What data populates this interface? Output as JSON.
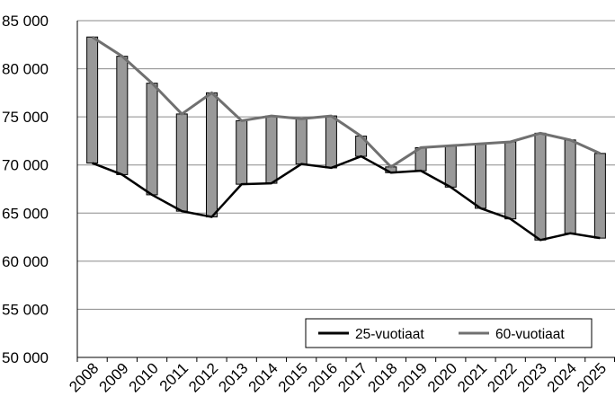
{
  "chart_data": {
    "type": "line",
    "categories": [
      "2008",
      "2009",
      "2010",
      "2011",
      "2012",
      "2013",
      "2014",
      "2015",
      "2016",
      "2017",
      "2018",
      "2019",
      "2020",
      "2021",
      "2022",
      "2023",
      "2024",
      "2025"
    ],
    "series": [
      {
        "name": "25-vuotiaat",
        "color": "#000000",
        "values": [
          70200,
          69000,
          66900,
          65200,
          64600,
          68000,
          68100,
          70100,
          69700,
          70900,
          69200,
          69400,
          67700,
          65500,
          64400,
          62200,
          62900,
          62400
        ]
      },
      {
        "name": "60-vuotiaat",
        "color": "#707070",
        "values": [
          83300,
          81300,
          78500,
          75300,
          77500,
          74600,
          75100,
          74800,
          75100,
          73000,
          69800,
          71800,
          72000,
          72200,
          72400,
          73300,
          72600,
          71200
        ]
      }
    ],
    "bar_fill": "#999999",
    "ylim": [
      50000,
      85000
    ],
    "yticks": [
      {
        "value": 50000,
        "label": "50 000"
      },
      {
        "value": 55000,
        "label": "55 000"
      },
      {
        "value": 60000,
        "label": "60 000"
      },
      {
        "value": 65000,
        "label": "65 000"
      },
      {
        "value": 70000,
        "label": "70 000"
      },
      {
        "value": 75000,
        "label": "75 000"
      },
      {
        "value": 80000,
        "label": "80 000"
      },
      {
        "value": 85000,
        "label": "85 000"
      }
    ],
    "grid": true,
    "legend_position": "bottom-right"
  }
}
